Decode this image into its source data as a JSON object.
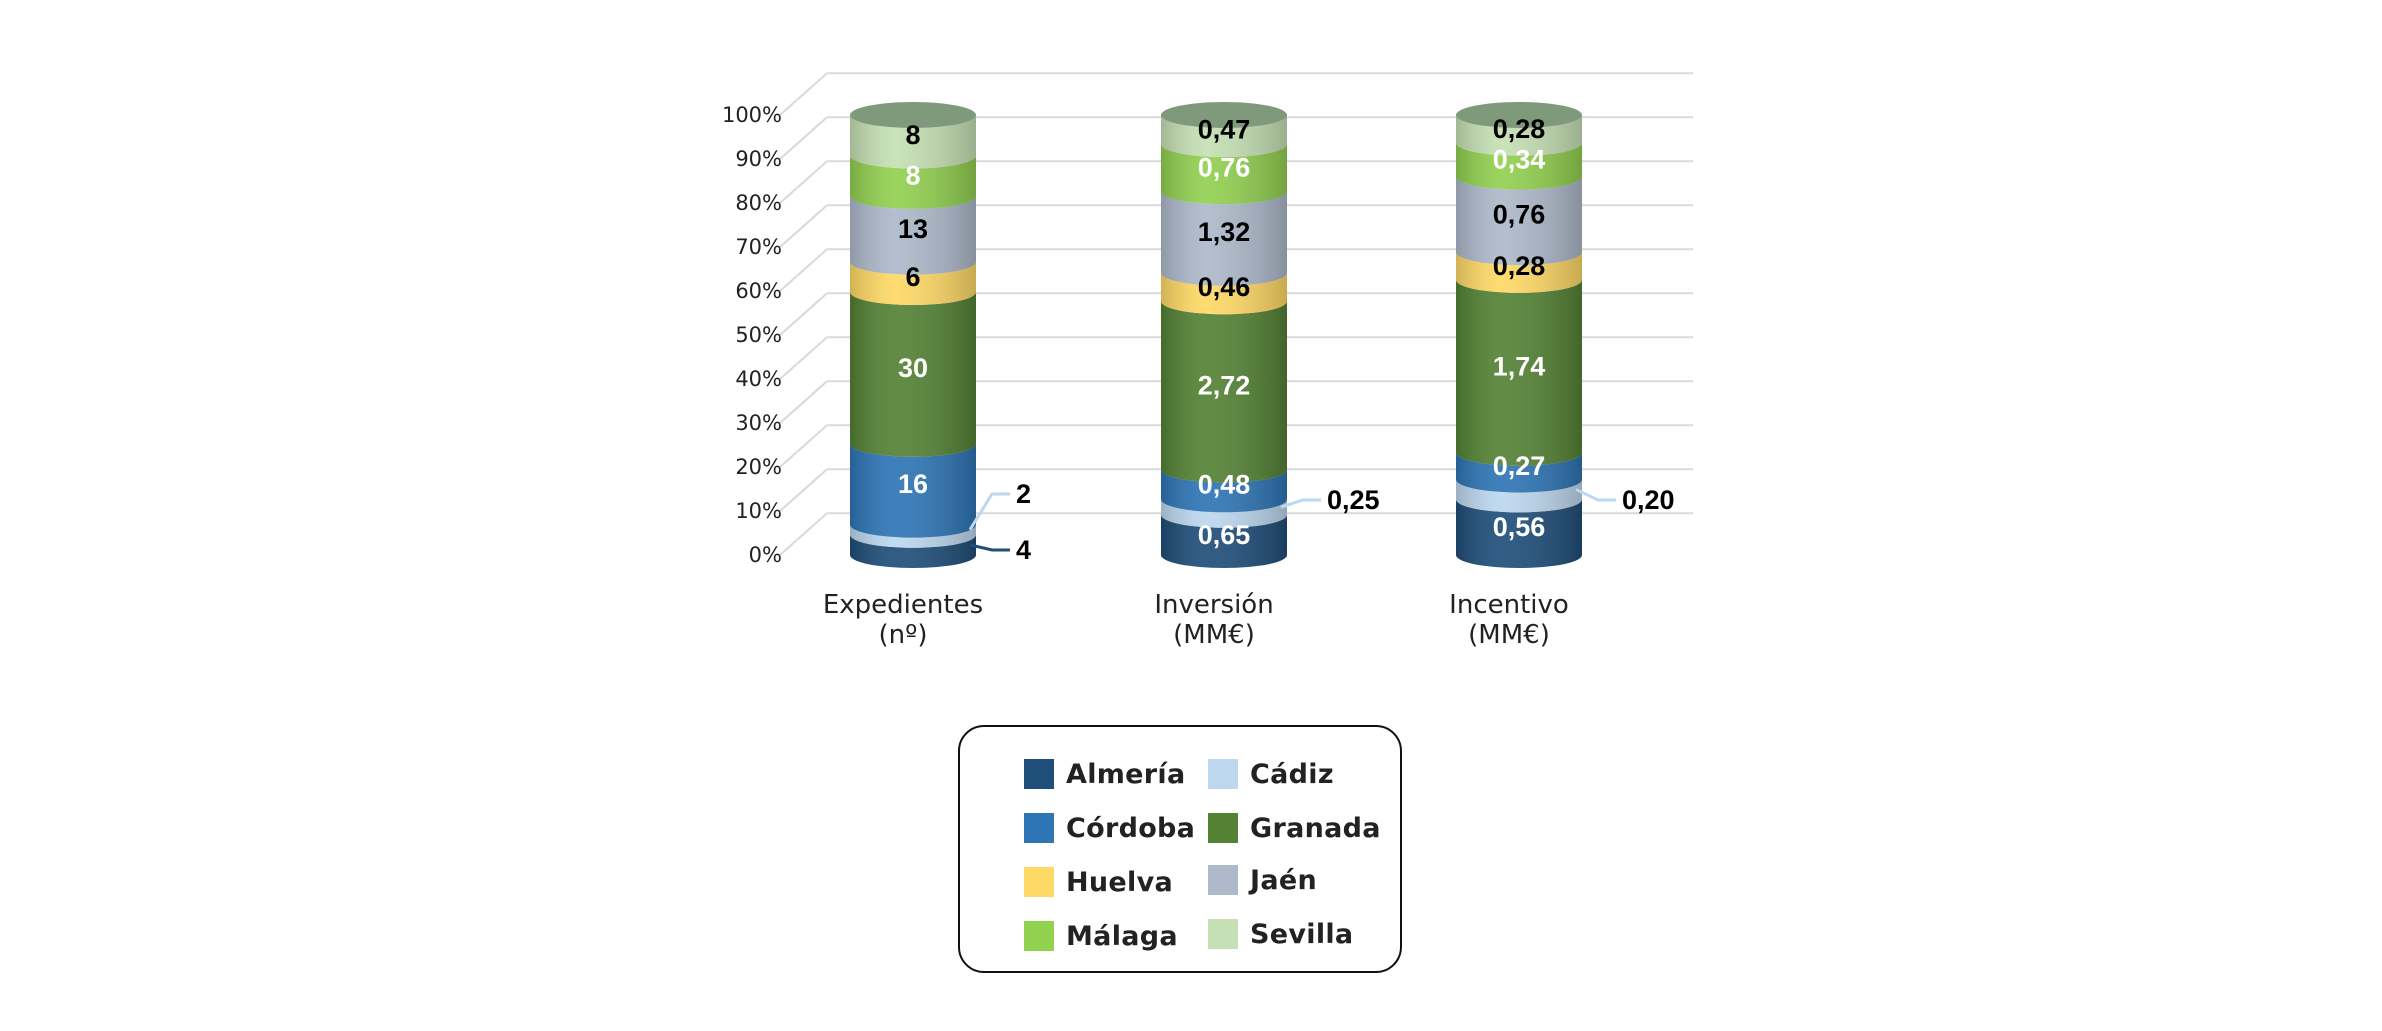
{
  "chart_data": {
    "type": "bar",
    "subtype": "stacked-100-percent-cylinder",
    "categories": [
      {
        "line1": "Expedientes",
        "line2": "(nº)"
      },
      {
        "line1": "Inversión",
        "line2": "(MM€)"
      },
      {
        "line1": "Incentivo",
        "line2": "(MM€)"
      }
    ],
    "yticks": [
      "0%",
      "10%",
      "20%",
      "30%",
      "40%",
      "50%",
      "60%",
      "70%",
      "80%",
      "90%",
      "100%"
    ],
    "ylim": [
      0,
      100
    ],
    "grid": true,
    "legend_position": "bottom-center",
    "series": [
      {
        "name": "Almería",
        "color": "#1F4E79",
        "values": [
          4,
          0.65,
          0.56
        ],
        "labels": [
          "4",
          "0,65",
          "0,56"
        ]
      },
      {
        "name": "Cádiz",
        "color": "#BDD7EE",
        "values": [
          2,
          0.25,
          0.2
        ],
        "labels": [
          "2",
          "0,25",
          "0,20"
        ]
      },
      {
        "name": "Córdoba",
        "color": "#2E75B6",
        "values": [
          16,
          0.48,
          0.27
        ],
        "labels": [
          "16",
          "0,48",
          "0,27"
        ]
      },
      {
        "name": "Granada",
        "color": "#548235",
        "values": [
          30,
          2.72,
          1.74
        ],
        "labels": [
          "30",
          "2,72",
          "1,74"
        ]
      },
      {
        "name": "Huelva",
        "color": "#FFD966",
        "values": [
          6,
          0.46,
          0.28
        ],
        "labels": [
          "6",
          "0,46",
          "0,28"
        ]
      },
      {
        "name": "Jaén",
        "color": "#ADB9CA",
        "values": [
          13,
          1.32,
          0.76
        ],
        "labels": [
          "13",
          "1,32",
          "0,76"
        ]
      },
      {
        "name": "Málaga",
        "color": "#92D050",
        "values": [
          8,
          0.76,
          0.34
        ],
        "labels": [
          "8",
          "0,76",
          "0,34"
        ]
      },
      {
        "name": "Sevilla",
        "color": "#C5E0B4",
        "values": [
          8,
          0.47,
          0.28
        ],
        "labels": [
          "8",
          "0,47",
          "0,28"
        ]
      }
    ]
  },
  "legend": {
    "items": [
      {
        "label": "Almería",
        "color": "#1F4E79"
      },
      {
        "label": "Cádiz",
        "color": "#BDD7EE"
      },
      {
        "label": "Córdoba",
        "color": "#2E75B6"
      },
      {
        "label": "Granada",
        "color": "#548235"
      },
      {
        "label": "Huelva",
        "color": "#FFD966"
      },
      {
        "label": "Jaén",
        "color": "#ADB9CA"
      },
      {
        "label": "Málaga",
        "color": "#92D050"
      },
      {
        "label": "Sevilla",
        "color": "#C5E0B4"
      }
    ]
  },
  "colors": {
    "grid": "#D9D9D9",
    "top_cap": "#7F9A7A",
    "dark_label": "#000000",
    "light_label": "#FFFFFF"
  }
}
